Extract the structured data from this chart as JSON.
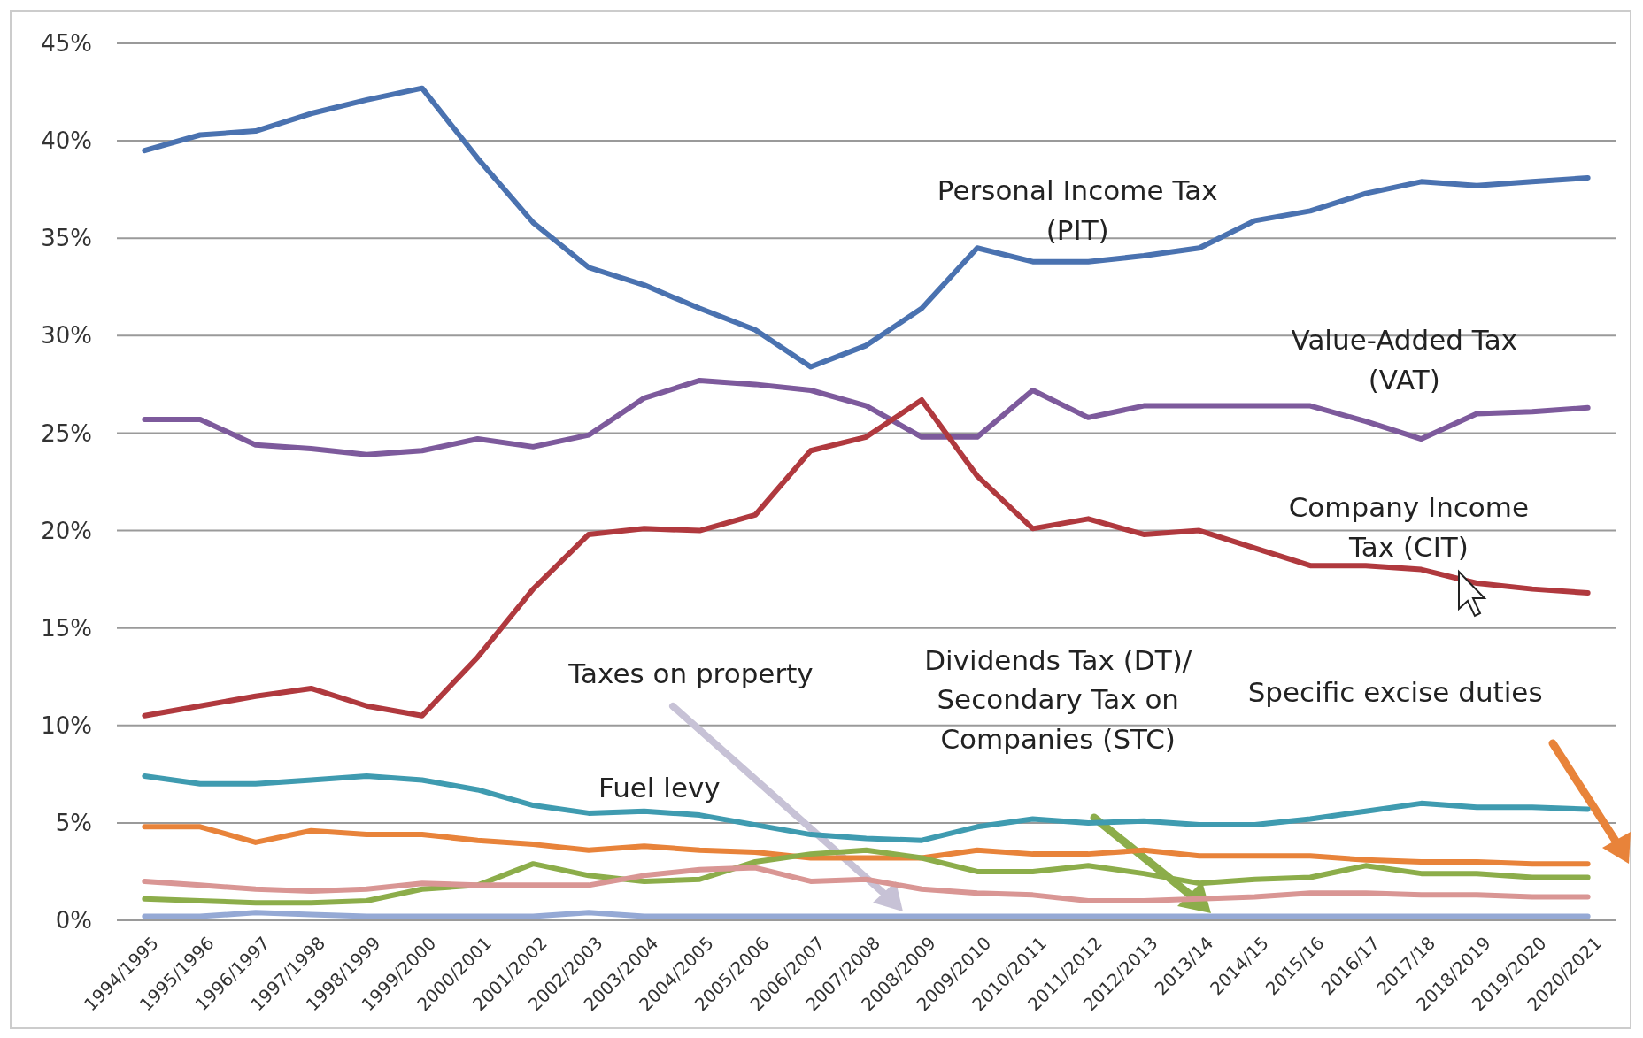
{
  "chart_data": {
    "type": "line",
    "categories": [
      "1994/1995",
      "1995/1996",
      "1996/1997",
      "1997/1998",
      "1998/1999",
      "1999/2000",
      "2000/2001",
      "2001/2002",
      "2002/2003",
      "2003/2004",
      "2004/2005",
      "2005/2006",
      "2006/2007",
      "2007/2008",
      "2008/2009",
      "2009/2010",
      "2010/2011",
      "2011/2012",
      "2012/2013",
      "2013/14",
      "2014/15",
      "2015/16",
      "2016/17",
      "2017/18",
      "2018/2019",
      "2019/2020",
      "2020/2021"
    ],
    "series": [
      {
        "color": "#4a72b0",
        "values": [
          39.5,
          40.3,
          40.5,
          41.4,
          42.1,
          42.7,
          39.1,
          35.8,
          33.5,
          32.6,
          31.4,
          30.3,
          28.4,
          29.5,
          31.4,
          34.5,
          33.8,
          33.8,
          34.1,
          34.5,
          35.9,
          36.4,
          37.3,
          37.9,
          37.7,
          37.9,
          38.1
        ]
      },
      {
        "color": "#7d5a9c",
        "values": [
          25.7,
          25.7,
          24.4,
          24.2,
          23.9,
          24.1,
          24.7,
          24.3,
          24.9,
          26.8,
          27.7,
          27.5,
          27.2,
          26.4,
          24.8,
          24.8,
          27.2,
          25.8,
          26.4,
          26.4,
          26.4,
          26.4,
          25.6,
          24.7,
          26.0,
          26.1,
          26.3
        ]
      },
      {
        "color": "#b0393e",
        "values": [
          10.5,
          11.0,
          11.5,
          11.9,
          11.0,
          10.5,
          13.5,
          17.0,
          19.8,
          20.1,
          20.0,
          20.8,
          24.1,
          24.8,
          26.7,
          22.8,
          20.1,
          20.6,
          19.8,
          20.0,
          19.1,
          18.2,
          18.2,
          18.0,
          17.3,
          17.0,
          16.8
        ]
      },
      {
        "color": "#3f9bb0",
        "values": [
          7.4,
          7.0,
          7.0,
          7.2,
          7.4,
          7.2,
          6.7,
          5.9,
          5.5,
          5.6,
          5.4,
          4.9,
          4.4,
          4.2,
          4.1,
          4.8,
          5.2,
          5.0,
          5.1,
          4.9,
          4.9,
          5.2,
          5.6,
          6.0,
          5.8,
          5.8,
          5.7
        ]
      },
      {
        "color": "#e8833a",
        "values": [
          4.8,
          4.8,
          4.0,
          4.6,
          4.4,
          4.4,
          4.1,
          3.9,
          3.6,
          3.8,
          3.6,
          3.5,
          3.2,
          3.2,
          3.2,
          3.6,
          3.4,
          3.4,
          3.6,
          3.3,
          3.3,
          3.3,
          3.1,
          3.0,
          3.0,
          2.9,
          2.9
        ]
      },
      {
        "color": "#8cad4a",
        "values": [
          1.1,
          1.0,
          0.9,
          0.9,
          1.0,
          1.6,
          1.8,
          2.9,
          2.3,
          2.0,
          2.1,
          3.0,
          3.4,
          3.6,
          3.2,
          2.5,
          2.5,
          2.8,
          2.4,
          1.9,
          2.1,
          2.2,
          2.8,
          2.4,
          2.4,
          2.2,
          2.2
        ]
      },
      {
        "color": "#d99694",
        "values": [
          2.0,
          1.8,
          1.6,
          1.5,
          1.6,
          1.9,
          1.8,
          1.8,
          1.8,
          2.3,
          2.6,
          2.7,
          2.0,
          2.1,
          1.6,
          1.4,
          1.3,
          1.0,
          1.0,
          1.1,
          1.2,
          1.4,
          1.4,
          1.3,
          1.3,
          1.2,
          1.2
        ]
      },
      {
        "color": "#95a9d5",
        "values": [
          0.2,
          0.2,
          0.4,
          0.3,
          0.2,
          0.2,
          0.2,
          0.2,
          0.4,
          0.2,
          0.2,
          0.2,
          0.2,
          0.2,
          0.2,
          0.2,
          0.2,
          0.2,
          0.2,
          0.2,
          0.2,
          0.2,
          0.2,
          0.2,
          0.2,
          0.2,
          0.2
        ]
      }
    ],
    "ylim": [
      0,
      45
    ],
    "yticks": [
      {
        "value": 0,
        "label": "0%"
      },
      {
        "value": 5,
        "label": "5%"
      },
      {
        "value": 10,
        "label": "10%"
      },
      {
        "value": 15,
        "label": "15%"
      },
      {
        "value": 20,
        "label": "20%"
      },
      {
        "value": 25,
        "label": "25%"
      },
      {
        "value": 30,
        "label": "30%"
      },
      {
        "value": 35,
        "label": "35%"
      },
      {
        "value": 40,
        "label": "40%"
      },
      {
        "value": 45,
        "label": "45%"
      }
    ],
    "grid": "y",
    "line_style": "solid",
    "annotations": [
      "Personal Income Tax\n(PIT)",
      "Value-Added Tax\n(VAT)",
      "Company Income\nTax (CIT)",
      "Taxes on property",
      "Fuel levy",
      "Dividends Tax (DT)/\nSecondary Tax on\nCompanies (STC)",
      "Specific excise duties"
    ]
  }
}
